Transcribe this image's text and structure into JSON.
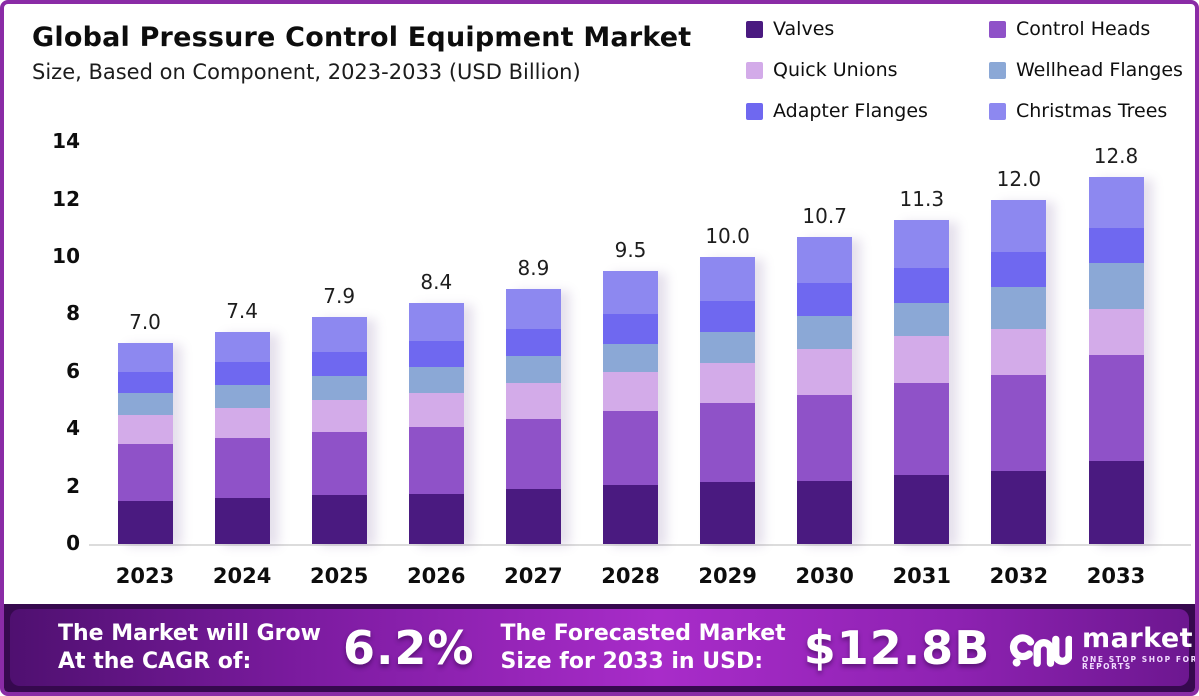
{
  "header": {
    "title": "Global Pressure Control Equipment Market",
    "subtitle": "Size, Based on Component, 2023-2033 (USD Billion)"
  },
  "chart_data": {
    "type": "bar",
    "stacked": true,
    "title": "Global Pressure Control Equipment Market Size, Based on Component, 2023-2033 (USD Billion)",
    "xlabel": "",
    "ylabel": "",
    "ylim": [
      0,
      14
    ],
    "yticks": [
      0,
      2,
      4,
      6,
      8,
      10,
      12,
      14
    ],
    "grid": false,
    "legend_position": "top-right",
    "categories": [
      "2023",
      "2024",
      "2025",
      "2026",
      "2027",
      "2028",
      "2029",
      "2030",
      "2031",
      "2032",
      "2033"
    ],
    "totals": [
      "7.0",
      "7.4",
      "7.9",
      "8.4",
      "8.9",
      "9.5",
      "10.0",
      "10.7",
      "11.3",
      "12.0",
      "12.8"
    ],
    "series": [
      {
        "name": "Valves",
        "color": "#4a1a80",
        "values": [
          1.5,
          1.6,
          1.7,
          1.75,
          1.9,
          2.05,
          2.15,
          2.2,
          2.4,
          2.55,
          2.9
        ]
      },
      {
        "name": "Control Heads",
        "color": "#8f52c8",
        "values": [
          2.0,
          2.1,
          2.2,
          2.32,
          2.45,
          2.6,
          2.75,
          3.0,
          3.2,
          3.35,
          3.7
        ]
      },
      {
        "name": "Quick Unions",
        "color": "#d3abe9",
        "values": [
          1.0,
          1.05,
          1.12,
          1.19,
          1.25,
          1.33,
          1.4,
          1.6,
          1.65,
          1.6,
          1.6
        ]
      },
      {
        "name": "Wellhead Flanges",
        "color": "#8ba8d6",
        "values": [
          0.75,
          0.8,
          0.85,
          0.91,
          0.95,
          1.0,
          1.08,
          1.15,
          1.15,
          1.45,
          1.6
        ]
      },
      {
        "name": "Adapter Flanges",
        "color": "#6f68f0",
        "values": [
          0.75,
          0.78,
          0.83,
          0.91,
          0.95,
          1.02,
          1.07,
          1.15,
          1.2,
          1.22,
          1.2
        ]
      },
      {
        "name": "Christmas Trees",
        "color": "#8d88f0",
        "values": [
          1.0,
          1.07,
          1.2,
          1.32,
          1.4,
          1.5,
          1.55,
          1.6,
          1.7,
          1.83,
          1.8
        ]
      }
    ]
  },
  "banner": {
    "cagr_label_line1": "The Market will Grow",
    "cagr_label_line2": "At the CAGR of:",
    "cagr_value": "6.2%",
    "forecast_label_line1": "The Forecasted Market",
    "forecast_label_line2": "Size for 2033 in USD:",
    "forecast_value": "$12.8B",
    "brand_name": "market.us",
    "brand_tagline": "ONE STOP SHOP FOR THE REPORTS"
  },
  "colors": {
    "frame_border": "#8a2ba6",
    "background": "#ffffff",
    "axis_line": "#dcdcdc",
    "text_dark": "#0d0d0d",
    "banner_rim": "#36094e",
    "banner_gradient_left": "#4f1070",
    "banner_gradient_mid": "#a82cc9",
    "banner_gradient_right": "#6d1790",
    "banner_text": "#ffffff"
  }
}
